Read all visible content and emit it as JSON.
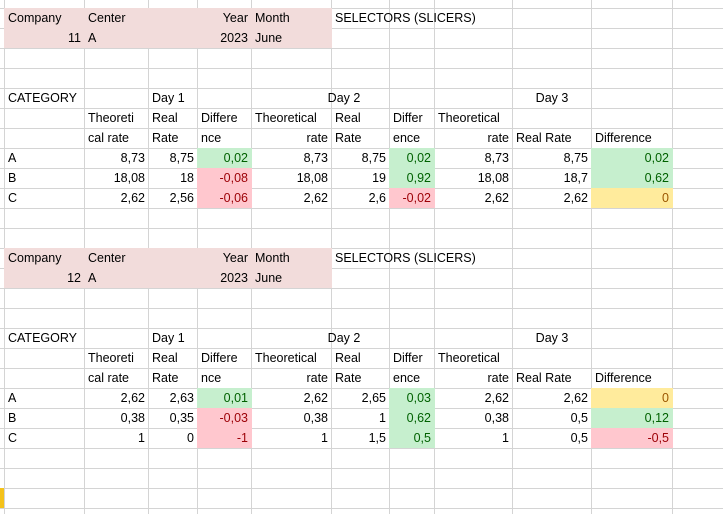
{
  "sheet": {
    "blocks": [
      {
        "header": {
          "company_label": "Company",
          "center_label": "Center",
          "year_label": "Year",
          "month_label": "Month",
          "selectors_label": "SELECTORS (SLICERS)",
          "company_value": "11",
          "center_value": "A",
          "year_value": "2023",
          "month_value": "June"
        },
        "category_label": "CATEGORY",
        "day_labels": [
          "Day 1",
          "Day 2",
          "Day 3"
        ],
        "col_headers_top": [
          "Theoreti",
          "Real",
          "Differe",
          "Theoretical",
          "Real",
          "Differ",
          "Theoretical"
        ],
        "col_headers_bottom": [
          "cal rate",
          "Rate",
          "nce",
          "rate",
          "Rate",
          "ence",
          "rate",
          "Real Rate",
          "Difference"
        ],
        "rows": [
          {
            "category": "A",
            "values": [
              "8,73",
              "8,75",
              "0,02",
              "8,73",
              "8,75",
              "0,02",
              "8,73",
              "8,75",
              "0,02"
            ]
          },
          {
            "category": "B",
            "values": [
              "18,08",
              "18",
              "-0,08",
              "18,08",
              "19",
              "0,92",
              "18,08",
              "18,7",
              "0,62"
            ]
          },
          {
            "category": "C",
            "values": [
              "2,62",
              "2,56",
              "-0,06",
              "2,62",
              "2,6",
              "-0,02",
              "2,62",
              "2,62",
              "0"
            ]
          }
        ]
      },
      {
        "header": {
          "company_label": "Company",
          "center_label": "Center",
          "year_label": "Year",
          "month_label": "Month",
          "selectors_label": "SELECTORS (SLICERS)",
          "company_value": "12",
          "center_value": "A",
          "year_value": "2023",
          "month_value": "June"
        },
        "category_label": "CATEGORY",
        "day_labels": [
          "Day 1",
          "Day 2",
          "Day 3"
        ],
        "col_headers_top": [
          "Theoreti",
          "Real",
          "Differe",
          "Theoretical",
          "Real",
          "Differ",
          "Theoretical"
        ],
        "col_headers_bottom": [
          "cal rate",
          "Rate",
          "nce",
          "rate",
          "Rate",
          "ence",
          "rate",
          "Real Rate",
          "Difference"
        ],
        "rows": [
          {
            "category": "A",
            "values": [
              "2,62",
              "2,63",
              "0,01",
              "2,62",
              "2,65",
              "0,03",
              "2,62",
              "2,62",
              "0"
            ]
          },
          {
            "category": "B",
            "values": [
              "0,38",
              "0,35",
              "-0,03",
              "0,38",
              "1",
              "0,62",
              "0,38",
              "0,5",
              "0,12"
            ]
          },
          {
            "category": "C",
            "values": [
              "1",
              "0",
              "-1",
              "1",
              "1,5",
              "0,5",
              "1",
              "0,5",
              "-0,5"
            ]
          }
        ]
      }
    ],
    "colors": {
      "pink_fill": "#f2dcdb",
      "good_fill": "#c6efce",
      "good_text": "#006100",
      "bad_fill": "#ffc7ce",
      "bad_text": "#9c0006",
      "neutral_fill": "#ffeb9c",
      "neutral_text": "#9c5700",
      "gridline": "#d4d4d4"
    }
  }
}
